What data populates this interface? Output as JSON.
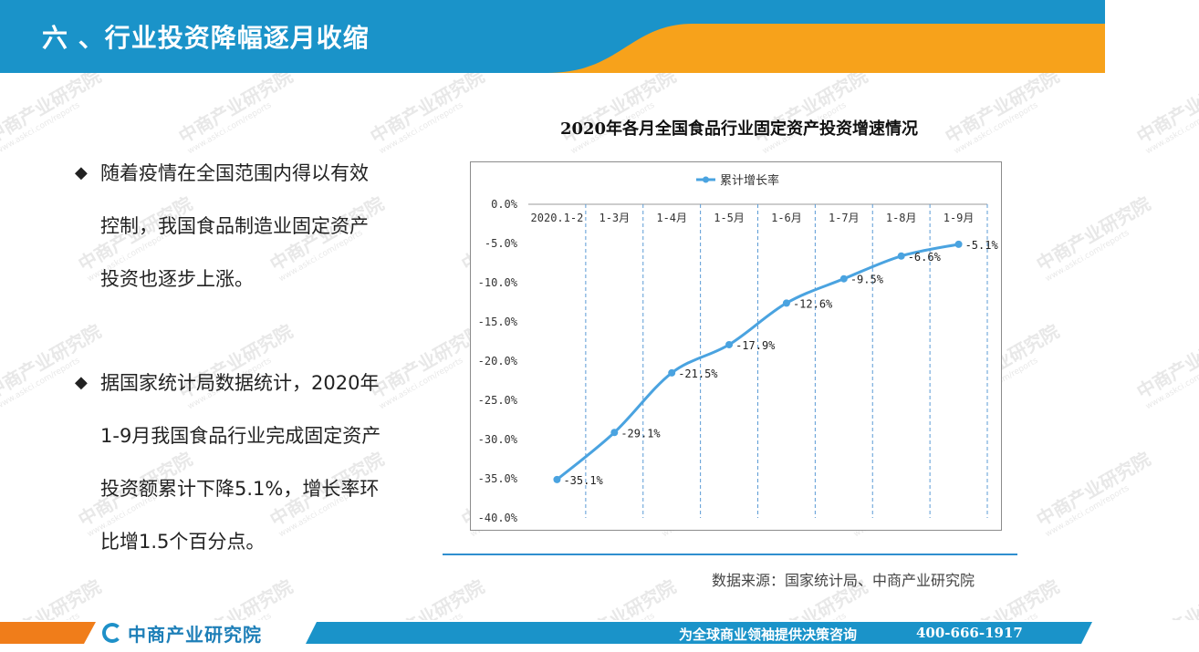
{
  "header": {
    "title": "六 、行业投资降幅逐月收缩",
    "colors": {
      "blue": "#1a93c9",
      "orange": "#f7a21b"
    }
  },
  "watermark": {
    "text": "中商产业研究院",
    "sub": "www.askci.com/reports"
  },
  "bullets": [
    {
      "icon": "diamond-bullet-icon",
      "lines": [
        "随着疫情在全国范围内得以有效",
        "控制，我国食品制造业固定资产",
        "投资也逐步上涨。"
      ]
    },
    {
      "icon": "diamond-bullet-icon",
      "lines": [
        "据国家统计局数据统计，2020年",
        "1-9月我国食品行业完成固定资产",
        "投资额累计下降5.1%，增长率环",
        "比增1.5个百分点。"
      ]
    }
  ],
  "chart_data": {
    "type": "line",
    "title": "2020年各月全国食品行业固定资产投资增速情况",
    "categories": [
      "2020.1-2",
      "1-3月",
      "1-4月",
      "1-5月",
      "1-6月",
      "1-7月",
      "1-8月",
      "1-9月"
    ],
    "series": [
      {
        "name": "累计增长率",
        "values": [
          -35.1,
          -29.1,
          -21.5,
          -17.9,
          -12.6,
          -9.5,
          -6.6,
          -5.1
        ],
        "color": "#4aa3e0"
      }
    ],
    "data_labels": [
      "-35.1%",
      "-29.1%",
      "-21.5%",
      "-17.9%",
      "-12.6%",
      "-9.5%",
      "-6.6%",
      "-5.1%"
    ],
    "ylim": [
      -40,
      0
    ],
    "yticks": [
      0,
      -5,
      -10,
      -15,
      -20,
      -25,
      -30,
      -35,
      -40
    ],
    "ytick_labels": [
      "0.0%",
      "-5.0%",
      "-10.0%",
      "-15.0%",
      "-20.0%",
      "-25.0%",
      "-30.0%",
      "-35.0%",
      "-40.0%"
    ],
    "legend_position": "top-left",
    "grid": "vertical-dashed",
    "xlabel": "",
    "ylabel": ""
  },
  "source": "数据来源：国家统计局、中商产业研究院",
  "footer": {
    "logo_text": "中商产业研究院",
    "slogan": "为全球商业领袖提供决策咨询",
    "phone": "400-666-1917"
  }
}
